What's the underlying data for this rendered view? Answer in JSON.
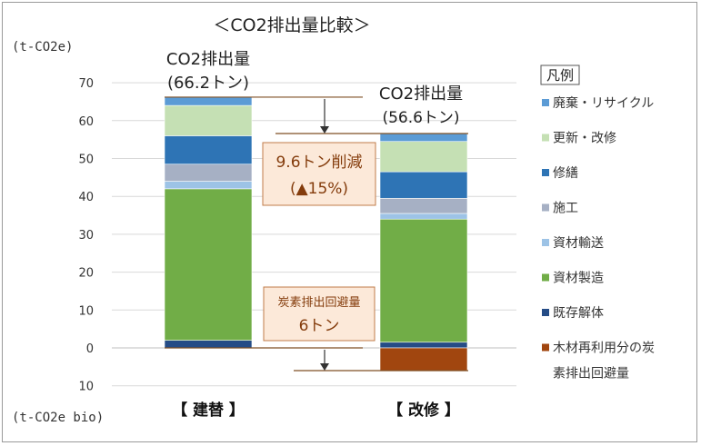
{
  "chart_data": {
    "type": "bar",
    "stacked": true,
    "title": "＜CO2排出量比較＞",
    "ylabel": "(t-CO2e)",
    "ylabel_bottom": "(t-CO2e bio)",
    "ylim": [
      -10,
      70
    ],
    "yticks": [
      {
        "value": 70,
        "label": "70"
      },
      {
        "value": 60,
        "label": "60"
      },
      {
        "value": 50,
        "label": "50"
      },
      {
        "value": 40,
        "label": "40"
      },
      {
        "value": 30,
        "label": "30"
      },
      {
        "value": 20,
        "label": "20"
      },
      {
        "value": 10,
        "label": "10"
      },
      {
        "value": 0,
        "label": "0"
      },
      {
        "value": -10,
        "label": "10"
      }
    ],
    "categories": [
      "【 建替 】",
      "【 改修 】"
    ],
    "series": [
      {
        "name": "既存解体",
        "color": "#254c86",
        "values": [
          2.0,
          1.5
        ]
      },
      {
        "name": "資材製造",
        "color": "#71ad47",
        "values": [
          40.0,
          32.5
        ]
      },
      {
        "name": "資材輸送",
        "color": "#9dc3e6",
        "values": [
          2.0,
          1.5
        ]
      },
      {
        "name": "施工",
        "color": "#a6b0c4",
        "values": [
          4.5,
          4.0
        ]
      },
      {
        "name": "修繕",
        "color": "#2e74b5",
        "values": [
          7.5,
          7.0
        ]
      },
      {
        "name": "更新・改修",
        "color": "#c5e0b4",
        "values": [
          8.0,
          8.0
        ]
      },
      {
        "name": "廃棄・リサイクル",
        "color": "#5b9bd5",
        "values": [
          2.2,
          2.1
        ]
      },
      {
        "name": "木材再利用分の炭素排出回避量",
        "color": "#a1460f",
        "values": [
          0,
          -6.0
        ]
      }
    ],
    "totals": [
      66.2,
      56.6
    ],
    "annotations": {
      "total_label": "CO2排出量",
      "total_values": [
        "(66.2トン)",
        "(56.6トン)"
      ],
      "reduction_line1": "9.6トン削減",
      "reduction_line2": "(▲15%)",
      "avoid_line1": "炭素排出回避量",
      "avoid_line2": "6トン"
    },
    "legend": {
      "title": "凡例",
      "placement": "right",
      "items": [
        {
          "label": "廃棄・リサイクル",
          "color": "#5b9bd5"
        },
        {
          "label": "更新・改修",
          "color": "#c5e0b4"
        },
        {
          "label": "修繕",
          "color": "#2e74b5"
        },
        {
          "label": "施工",
          "color": "#a6b0c4"
        },
        {
          "label": "資材輸送",
          "color": "#9dc3e6"
        },
        {
          "label": "資材製造",
          "color": "#71ad47"
        },
        {
          "label": "既存解体",
          "color": "#254c86"
        },
        {
          "label": "木材再利用分の炭\n素排出回避量",
          "color": "#a1460f"
        }
      ]
    },
    "grid": true,
    "colors": {
      "annotation_fill": "#fce9d9",
      "annotation_border": "#c07c4a",
      "annotation_text": "#843c0c",
      "guide_line": "#7f4f24",
      "grid": "#d9d9d9"
    }
  }
}
